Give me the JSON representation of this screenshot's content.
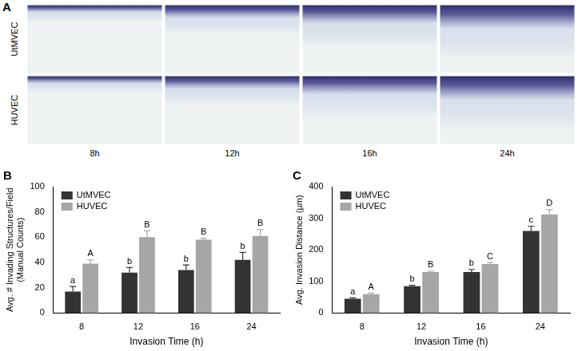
{
  "panel_a": {
    "label": "A",
    "rows": [
      "UtMVEC",
      "HUVEC"
    ],
    "columns": [
      "8h",
      "12h",
      "16h",
      "24h"
    ]
  },
  "chart_data": [
    {
      "type": "bar",
      "title": "B",
      "categories": [
        "8",
        "12",
        "16",
        "24"
      ],
      "x_label": "Invasion Time (h)",
      "y_label": "Avg. # Invading Structures/Field\n(Manual Counts)",
      "series": [
        {
          "name": "UtMVEC",
          "color": "#333333",
          "values": [
            17,
            32,
            34,
            42
          ],
          "errors": [
            4,
            4,
            4,
            6
          ],
          "significance": [
            "a",
            "b",
            "b",
            "b"
          ]
        },
        {
          "name": "HUVEC",
          "color": "#a6a6a6",
          "values": [
            39,
            60,
            58,
            61
          ],
          "errors": [
            3,
            5,
            1,
            5
          ],
          "significance": [
            "A",
            "B",
            "B",
            "B"
          ]
        }
      ],
      "ylim": [
        0,
        100
      ],
      "yticks": [
        0,
        20,
        40,
        60,
        80,
        100
      ],
      "grid": false,
      "legend": "upper left"
    },
    {
      "type": "bar",
      "title": "C",
      "categories": [
        "8",
        "12",
        "16",
        "24"
      ],
      "x_label": "Invasion Time (h)",
      "y_label": "Avg. Invasion Distance (µm)",
      "series": [
        {
          "name": "UtMVEC",
          "color": "#333333",
          "values": [
            45,
            85,
            130,
            260
          ],
          "errors": [
            3,
            3,
            8,
            15
          ],
          "significance": [
            "a",
            "b",
            "b",
            "c"
          ]
        },
        {
          "name": "HUVEC",
          "color": "#a6a6a6",
          "values": [
            60,
            130,
            155,
            312
          ],
          "errors": [
            3,
            3,
            5,
            15
          ],
          "significance": [
            "A",
            "B",
            "C",
            "D"
          ]
        }
      ],
      "ylim": [
        0,
        400
      ],
      "yticks": [
        0,
        100,
        200,
        300,
        400
      ],
      "grid": false,
      "legend": "upper left"
    }
  ]
}
